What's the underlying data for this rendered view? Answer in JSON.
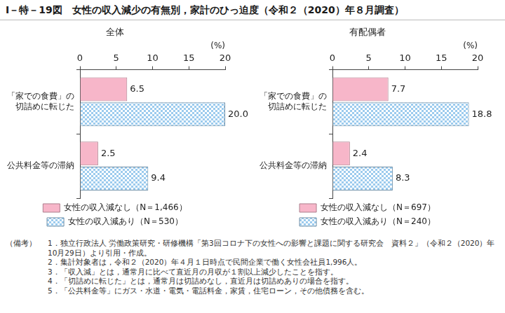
{
  "figure_title": "Ⅰ－特－19図　女性の収入減少の有無別，家計のひっ迫度（令和２（2020）年８月調査）",
  "chart_data": [
    {
      "type": "bar",
      "orientation": "horizontal",
      "title": "全体",
      "x_label": "(%)",
      "categories": [
        "「家での食費」の切詰めに転じた",
        "公共料金等の滞納"
      ],
      "series": [
        {
          "name": "女性の収入減なし（N＝1,466）",
          "color": "#f7b6c9",
          "values": [
            6.5,
            2.5
          ],
          "value_labels": [
            "6.5",
            "2.5"
          ]
        },
        {
          "name": "女性の収入減あり（N＝530）",
          "color": "#9ccbee",
          "values": [
            20.0,
            9.4
          ],
          "value_labels": [
            "20.0",
            "9.4"
          ]
        }
      ],
      "xlim": [
        0,
        20
      ],
      "xticks": [
        0,
        5,
        10,
        15,
        20
      ],
      "grid": false,
      "legend": "bottom",
      "data_labels": true
    },
    {
      "type": "bar",
      "orientation": "horizontal",
      "title": "有配偶者",
      "x_label": "(%)",
      "categories": [
        "「家での食費」の切詰めに転じた",
        "公共料金等の滞納"
      ],
      "series": [
        {
          "name": "女性の収入減なし（N＝697）",
          "color": "#f7b6c9",
          "values": [
            7.7,
            2.4
          ],
          "value_labels": [
            "7.7",
            "2.4"
          ]
        },
        {
          "name": "女性の収入減あり（N＝240）",
          "color": "#9ccbee",
          "values": [
            18.8,
            8.3
          ],
          "value_labels": [
            "18.8",
            "8.3"
          ]
        }
      ],
      "xlim": [
        0,
        20
      ],
      "xticks": [
        0,
        5,
        10,
        15,
        20
      ],
      "grid": false,
      "legend": "bottom",
      "data_labels": true
    }
  ],
  "notes": {
    "label": "（備考）",
    "items": [
      "1．独立行政法人 労働政策研究・研修機構「第3回コロナ下の女性への影響と課題に関する研究会　資料２」（令和２（2020）年10月29日）より引用・作成。",
      "2．集計対象者は，令和２（2020）年４月１日時点で民間企業で働く女性会社員1,996人。",
      "3．「収入減」とは，通常月に比べて直近月の月収が１割以上減少したことを指す。",
      "4．「切詰めに転じた」とは，通常月は切詰めなし，直近月は切詰めありの場合を指す。",
      "5．「公共料金等」にガス・水道・電気・電話料金，家賃，住宅ローン，その他債務を含む。"
    ]
  }
}
